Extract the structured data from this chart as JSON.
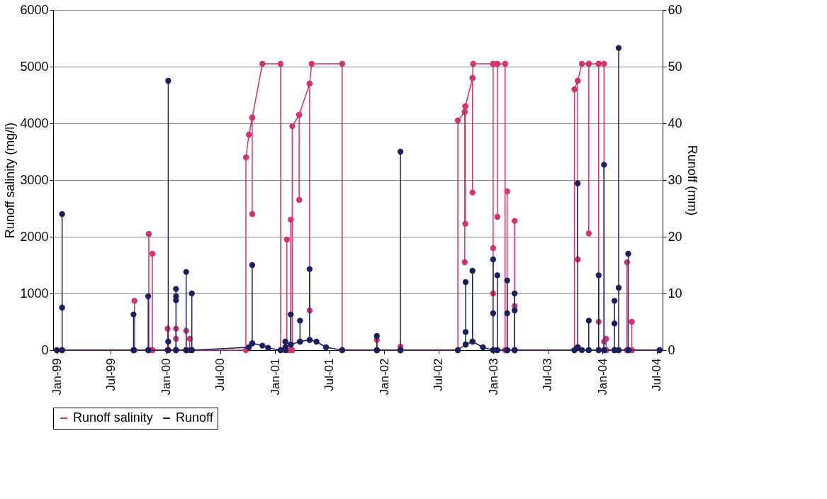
{
  "chart_data": {
    "type": "line",
    "ylabel": "Runoff salinity (mg/l)",
    "y2label": "Runoff (mm)",
    "xlim": [
      "1998-12-20",
      "2004-07-20"
    ],
    "xticks": [
      {
        "value": "1999-01-01",
        "label": "Jan-99"
      },
      {
        "value": "1999-07-01",
        "label": "Jul-99"
      },
      {
        "value": "2000-01-01",
        "label": "Jan-00"
      },
      {
        "value": "2000-07-01",
        "label": "Jul-00"
      },
      {
        "value": "2001-01-01",
        "label": "Jan-01"
      },
      {
        "value": "2001-07-01",
        "label": "Jul-01"
      },
      {
        "value": "2002-01-01",
        "label": "Jan-02"
      },
      {
        "value": "2002-07-01",
        "label": "Jul-02"
      },
      {
        "value": "2003-01-01",
        "label": "Jan-03"
      },
      {
        "value": "2003-07-01",
        "label": "Jul-03"
      },
      {
        "value": "2004-01-01",
        "label": "Jan-04"
      },
      {
        "value": "2004-07-01",
        "label": "Jul-04"
      }
    ],
    "ylim": [
      0,
      6000
    ],
    "yticks": [
      0,
      1000,
      2000,
      3000,
      4000,
      5000,
      6000
    ],
    "y2lim": [
      0,
      60
    ],
    "y2ticks": [
      0,
      10,
      20,
      30,
      40,
      50,
      60
    ],
    "grid": "y",
    "legend": "bottom",
    "marker": "circle",
    "line_style": "solid",
    "series": [
      {
        "name": "Runoff salinity",
        "color": "#d6336c",
        "axis": "y",
        "x": [
          "1999-01-01",
          "1999-09-18",
          "1999-09-18",
          "1999-09-18",
          "1999-11-05",
          "1999-11-05",
          "1999-11-05",
          "1999-11-17",
          "1999-11-17",
          "1999-11-17",
          "2000-01-07",
          "2000-01-07",
          "2000-01-07",
          "2000-02-04",
          "2000-02-04",
          "2000-02-04",
          "2000-02-04",
          "2000-03-09",
          "2000-03-09",
          "2000-03-09",
          "2000-03-21",
          "2000-03-21",
          "2000-03-21",
          "2000-09-25",
          "2000-09-25",
          "2000-10-05",
          "2000-10-16",
          "2000-10-16",
          "2000-10-16",
          "2000-11-19",
          "2001-01-19",
          "2001-01-19",
          "2001-02-09",
          "2001-02-09",
          "2001-02-09",
          "2001-02-22",
          "2001-02-22",
          "2001-02-22",
          "2001-02-27",
          "2001-02-27",
          "2001-03-22",
          "2001-03-22",
          "2001-03-22",
          "2001-04-26",
          "2001-04-26",
          "2001-04-26",
          "2001-05-03",
          "2001-08-13",
          "2001-08-13",
          "2001-12-07",
          "2001-12-07",
          "2001-12-07",
          "2002-02-24",
          "2002-02-24",
          "2002-02-24",
          "2002-09-04",
          "2002-09-04",
          "2002-09-27",
          "2002-09-27",
          "2002-09-27",
          "2002-09-29",
          "2002-09-29",
          "2002-09-29",
          "2002-10-23",
          "2002-10-23",
          "2002-10-23",
          "2002-10-25",
          "2002-12-31",
          "2002-12-31",
          "2002-12-31",
          "2002-12-31",
          "2003-01-14",
          "2003-01-14",
          "2003-01-14",
          "2003-02-09",
          "2003-02-09",
          "2003-02-16",
          "2003-02-16",
          "2003-02-16",
          "2003-03-13",
          "2003-03-13",
          "2003-03-13",
          "2003-03-13",
          "2003-09-29",
          "2003-09-29",
          "2003-10-10",
          "2003-10-10",
          "2003-10-10",
          "2003-10-24",
          "2003-11-16",
          "2003-11-16",
          "2003-11-16",
          "2003-12-19",
          "2003-12-19",
          "2003-12-19",
          "2004-01-06",
          "2004-01-06",
          "2004-01-06",
          "2004-01-13",
          "2004-01-13",
          "2004-01-13",
          "2004-03-23",
          "2004-03-23",
          "2004-03-23",
          "2004-04-08",
          "2004-04-08",
          "2004-04-08",
          "2004-07-10"
        ],
        "values": [
          0,
          0,
          870,
          0,
          0,
          2050,
          0,
          0,
          1700,
          0,
          0,
          380,
          0,
          0,
          380,
          200,
          0,
          0,
          340,
          0,
          0,
          200,
          0,
          0,
          3400,
          3800,
          4100,
          2400,
          4100,
          5050,
          5050,
          0,
          0,
          1950,
          0,
          0,
          2300,
          0,
          0,
          3950,
          4150,
          2650,
          4150,
          4700,
          700,
          4700,
          5050,
          5050,
          0,
          0,
          180,
          0,
          0,
          60,
          0,
          0,
          4050,
          4200,
          1550,
          4200,
          4300,
          2230,
          4300,
          4800,
          2780,
          4800,
          5050,
          5050,
          1800,
          1000,
          5050,
          5050,
          2350,
          5050,
          5050,
          0,
          0,
          2800,
          0,
          0,
          2280,
          780,
          0,
          0,
          4600,
          4750,
          1600,
          4750,
          5050,
          5050,
          2060,
          5050,
          5050,
          500,
          5050,
          5050,
          150,
          0,
          0,
          200,
          0,
          0,
          1550,
          0,
          0,
          500,
          0,
          0
        ]
      },
      {
        "name": "Runoff",
        "color": "#1c1f5e",
        "axis": "y2",
        "x": [
          "1999-01-01",
          "1999-01-19",
          "1999-01-19",
          "1999-01-19",
          "1999-01-19",
          "1999-09-15",
          "1999-09-15",
          "1999-09-15",
          "1999-11-03",
          "1999-11-03",
          "1999-11-03",
          "2000-01-09",
          "2000-01-09",
          "2000-01-09",
          "2000-01-09",
          "2000-02-04",
          "2000-02-04",
          "2000-02-04",
          "2000-02-04",
          "2000-02-04",
          "2000-03-09",
          "2000-03-09",
          "2000-03-09",
          "2000-03-28",
          "2000-03-28",
          "2000-03-28",
          "2000-10-05",
          "2000-10-16",
          "2000-10-16",
          "2000-10-16",
          "2000-11-19",
          "2000-12-08",
          "2001-01-19",
          "2001-02-04",
          "2001-02-04",
          "2001-02-04",
          "2001-02-22",
          "2001-02-22",
          "2001-02-22",
          "2001-03-25",
          "2001-03-25",
          "2001-03-25",
          "2001-04-26",
          "2001-04-26",
          "2001-04-26",
          "2001-05-19",
          "2001-06-20",
          "2001-08-13",
          "2001-12-07",
          "2001-12-07",
          "2001-12-07",
          "2002-02-24",
          "2002-02-24",
          "2002-02-24",
          "2002-09-04",
          "2002-09-30",
          "2002-09-30",
          "2002-09-30",
          "2002-09-30",
          "2002-10-23",
          "2002-10-23",
          "2002-10-23",
          "2002-11-27",
          "2002-12-31",
          "2002-12-31",
          "2002-12-31",
          "2002-12-31",
          "2003-01-14",
          "2003-01-14",
          "2003-01-14",
          "2003-02-16",
          "2003-02-16",
          "2003-02-16",
          "2003-02-16",
          "2003-03-13",
          "2003-03-13",
          "2003-03-13",
          "2003-03-13",
          "2003-09-29",
          "2003-10-10",
          "2003-10-10",
          "2003-10-10",
          "2003-10-24",
          "2003-11-16",
          "2003-11-16",
          "2003-11-16",
          "2003-12-19",
          "2003-12-19",
          "2003-12-19",
          "2004-01-06",
          "2004-01-06",
          "2004-01-06",
          "2004-02-10",
          "2004-02-10",
          "2004-02-10",
          "2004-02-10",
          "2004-02-24",
          "2004-02-24",
          "2004-02-24",
          "2004-02-24",
          "2004-03-27",
          "2004-03-27",
          "2004-03-27",
          "2004-07-10"
        ],
        "values": [
          0,
          0,
          24,
          7.5,
          0,
          0,
          6.3,
          0,
          0,
          9.5,
          0,
          0,
          47.5,
          1.5,
          0,
          0,
          10.8,
          9.5,
          8.8,
          0,
          0,
          13.8,
          0,
          0,
          10,
          0,
          0.5,
          1.2,
          15,
          1.2,
          0.8,
          0.4,
          0,
          0,
          1.5,
          0.5,
          1,
          6.3,
          1,
          1.5,
          5.2,
          1.5,
          1.8,
          14.3,
          1.8,
          1.5,
          0.5,
          0,
          0,
          2.5,
          0,
          0,
          35,
          0,
          0,
          1,
          12,
          3.2,
          1,
          1.5,
          14,
          1.5,
          0.5,
          0,
          16,
          6.5,
          0,
          0,
          13.2,
          0,
          0,
          12.3,
          6.5,
          0,
          0,
          10,
          7,
          0,
          0,
          0.5,
          29.4,
          0.5,
          0,
          0,
          5.2,
          0,
          0,
          13.2,
          0,
          0,
          32.7,
          0,
          0,
          4.7,
          8.7,
          0,
          0,
          53.3,
          11,
          0,
          0,
          17,
          0,
          0
        ]
      }
    ]
  }
}
